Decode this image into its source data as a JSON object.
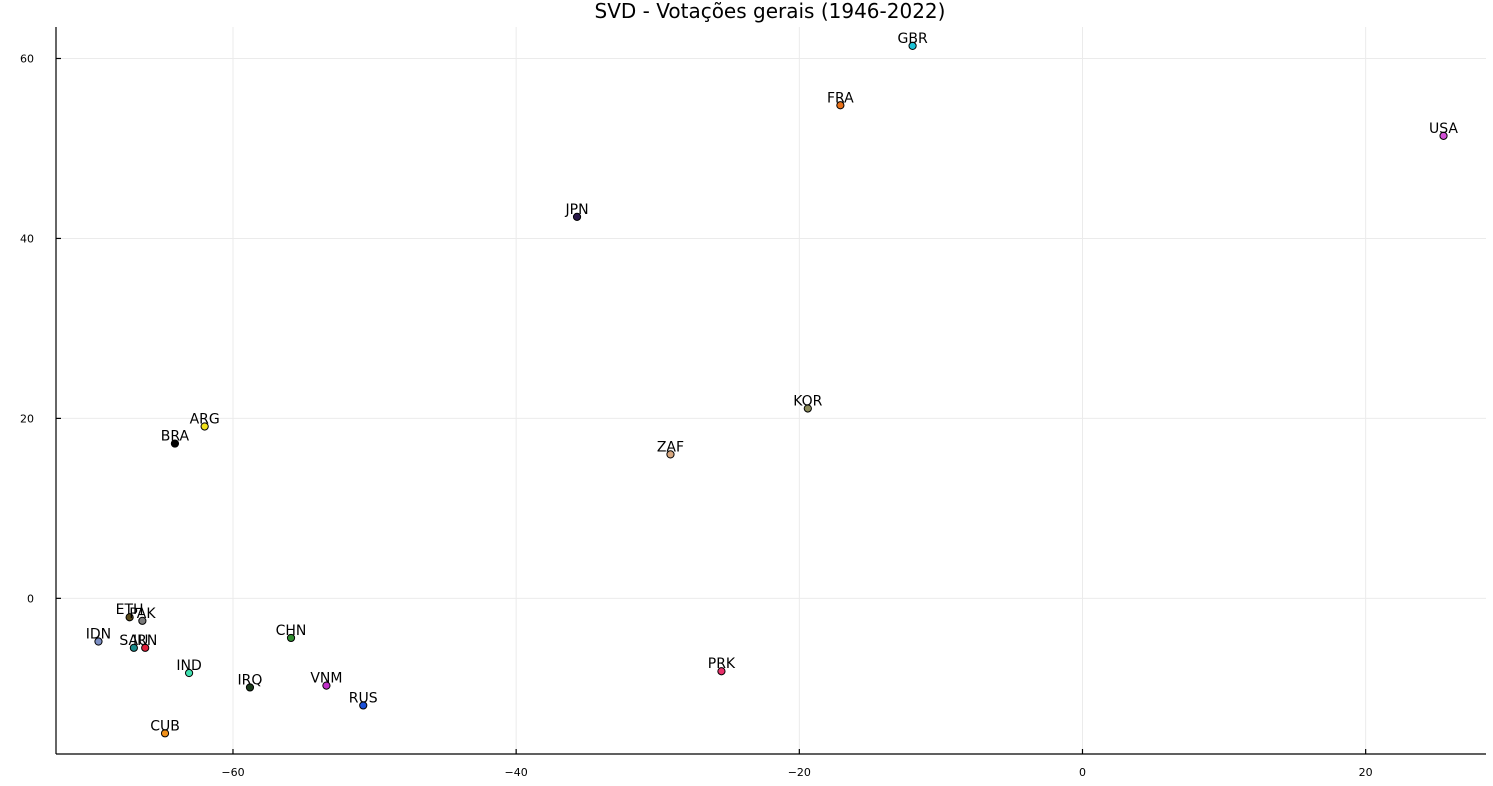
{
  "chart_data": {
    "type": "scatter",
    "title": "SVD - Votações gerais (1946-2022)",
    "xlabel": "",
    "ylabel": "",
    "xlim": [
      -72.5,
      28.5
    ],
    "ylim": [
      -17.3,
      63.5
    ],
    "xticks": [
      -60,
      -40,
      -20,
      0,
      20
    ],
    "yticks": [
      0,
      20,
      40,
      60
    ],
    "xtick_labels": [
      "−60",
      "−40",
      "−20",
      "0",
      "20"
    ],
    "ytick_labels": [
      "0",
      "20",
      "40",
      "60"
    ],
    "grid": true,
    "legend": "none",
    "points": [
      {
        "label": "GBR",
        "x": -12.0,
        "y": 61.4,
        "color": "#1fc2d6"
      },
      {
        "label": "FRA",
        "x": -17.1,
        "y": 54.8,
        "color": "#e8711a"
      },
      {
        "label": "USA",
        "x": 25.5,
        "y": 51.4,
        "color": "#d24fd6"
      },
      {
        "label": "JPN",
        "x": -35.7,
        "y": 42.4,
        "color": "#2b1a4a"
      },
      {
        "label": "KOR",
        "x": -19.4,
        "y": 21.1,
        "color": "#8a8a5a"
      },
      {
        "label": "ARG",
        "x": -62.0,
        "y": 19.1,
        "color": "#f2e21a"
      },
      {
        "label": "BRA",
        "x": -64.1,
        "y": 17.2,
        "color": "#000000"
      },
      {
        "label": "ZAF",
        "x": -29.1,
        "y": 16.0,
        "color": "#d8a880"
      },
      {
        "label": "ETH",
        "x": -67.3,
        "y": -2.1,
        "color": "#5a4a1a"
      },
      {
        "label": "PAK",
        "x": -66.4,
        "y": -2.5,
        "color": "#7a7a7a"
      },
      {
        "label": "CHN",
        "x": -55.9,
        "y": -4.4,
        "color": "#2e8b2e"
      },
      {
        "label": "IDN",
        "x": -69.5,
        "y": -4.8,
        "color": "#7c8fc4"
      },
      {
        "label": "SAU",
        "x": -67.0,
        "y": -5.5,
        "color": "#1a8a8a"
      },
      {
        "label": "IRN",
        "x": -66.2,
        "y": -5.5,
        "color": "#e0203a"
      },
      {
        "label": "IND",
        "x": -63.1,
        "y": -8.3,
        "color": "#40e0b0"
      },
      {
        "label": "PRK",
        "x": -25.5,
        "y": -8.1,
        "color": "#e8306a"
      },
      {
        "label": "IRQ",
        "x": -58.8,
        "y": -9.9,
        "color": "#1a3a1a"
      },
      {
        "label": "VNM",
        "x": -53.4,
        "y": -9.7,
        "color": "#c030c8"
      },
      {
        "label": "RUS",
        "x": -50.8,
        "y": -11.9,
        "color": "#1a50d8"
      },
      {
        "label": "CUB",
        "x": -64.8,
        "y": -15.0,
        "color": "#f0901a"
      }
    ]
  }
}
